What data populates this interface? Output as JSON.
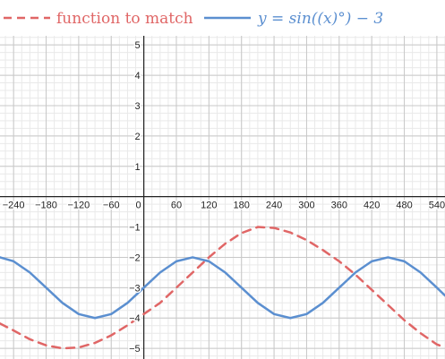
{
  "legend": {
    "dashed_label": "function to match",
    "solid_label": "y = sin((x)°) − 3"
  },
  "colors": {
    "dashed": "#e06666",
    "solid": "#5b8fd0",
    "axis": "#222222",
    "grid_major": "#c8c8c8",
    "grid_minor": "#e9e9e9"
  },
  "chart_data": {
    "type": "line",
    "title": "",
    "xlabel": "",
    "ylabel": "",
    "xlim": [
      -265,
      555
    ],
    "ylim": [
      -5.35,
      5.3
    ],
    "grid": true,
    "legend_position": "top",
    "x_ticks": [
      {
        "value": -240,
        "label": "−240"
      },
      {
        "value": -180,
        "label": "−180"
      },
      {
        "value": -120,
        "label": "−120"
      },
      {
        "value": -60,
        "label": "−60"
      },
      {
        "value": 0,
        "label": "0"
      },
      {
        "value": 60,
        "label": "60"
      },
      {
        "value": 120,
        "label": "120"
      },
      {
        "value": 180,
        "label": "180"
      },
      {
        "value": 240,
        "label": "240"
      },
      {
        "value": 300,
        "label": "300"
      },
      {
        "value": 360,
        "label": "360"
      },
      {
        "value": 420,
        "label": "420"
      },
      {
        "value": 480,
        "label": "480"
      },
      {
        "value": 540,
        "label": "540"
      }
    ],
    "y_ticks": [
      {
        "value": 5,
        "label": "5"
      },
      {
        "value": 4,
        "label": "4"
      },
      {
        "value": 3,
        "label": "3"
      },
      {
        "value": 2,
        "label": "2"
      },
      {
        "value": 1,
        "label": "1"
      },
      {
        "value": -1,
        "label": "−1"
      },
      {
        "value": -2,
        "label": "−2"
      },
      {
        "value": -3,
        "label": "−3"
      },
      {
        "value": -4,
        "label": "−4"
      },
      {
        "value": -5,
        "label": "−5"
      }
    ],
    "series": [
      {
        "name": "function to match",
        "style": "dashed",
        "color": "#e06666",
        "x": [
          -265,
          -240,
          -210,
          -180,
          -150,
          -120,
          -90,
          -60,
          -30,
          0,
          30,
          60,
          90,
          120,
          150,
          180,
          210,
          240,
          270,
          300,
          330,
          360,
          390,
          420,
          450,
          480,
          510,
          540,
          555
        ],
        "y": [
          -4.18,
          -4.41,
          -4.7,
          -4.9,
          -5.0,
          -4.97,
          -4.82,
          -4.57,
          -4.24,
          -3.87,
          -3.5,
          -3.0,
          -2.5,
          -2.0,
          -1.55,
          -1.2,
          -1.0,
          -1.03,
          -1.18,
          -1.43,
          -1.76,
          -2.13,
          -2.57,
          -3.07,
          -3.57,
          -4.07,
          -4.5,
          -4.87,
          -4.97
        ]
      },
      {
        "name": "y = sin((x)°) − 3",
        "style": "solid",
        "color": "#5b8fd0",
        "x": [
          -265,
          -240,
          -210,
          -180,
          -150,
          -120,
          -90,
          -60,
          -30,
          0,
          30,
          60,
          90,
          120,
          150,
          180,
          210,
          240,
          270,
          300,
          330,
          360,
          390,
          420,
          450,
          480,
          510,
          540,
          555
        ],
        "y": [
          -2.0,
          -2.13,
          -2.5,
          -3.0,
          -3.5,
          -3.87,
          -4.0,
          -3.87,
          -3.5,
          -3.0,
          -2.5,
          -2.13,
          -2.0,
          -2.13,
          -2.5,
          -3.0,
          -3.5,
          -3.87,
          -4.0,
          -3.87,
          -3.5,
          -3.0,
          -2.5,
          -2.13,
          -2.0,
          -2.13,
          -2.5,
          -3.0,
          -3.26
        ]
      }
    ]
  }
}
